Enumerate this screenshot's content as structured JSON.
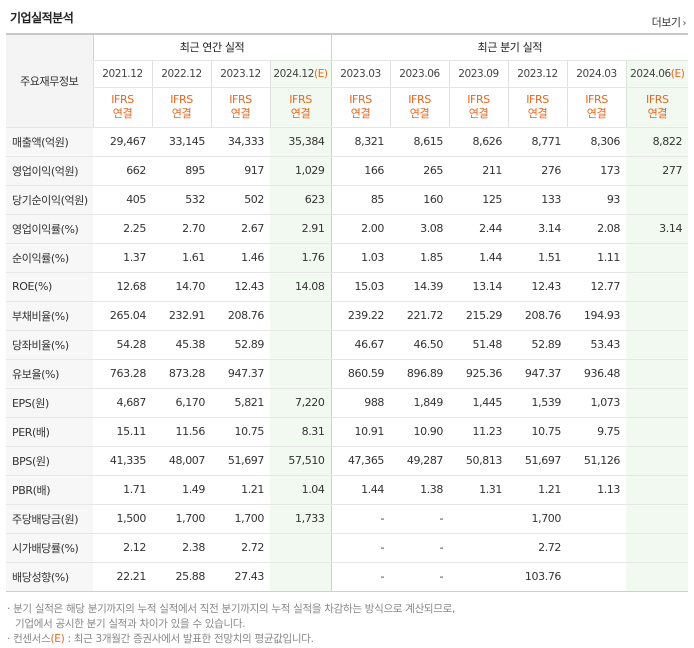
{
  "header": {
    "title": "기업실적분석",
    "more_label": "더보기"
  },
  "table": {
    "corner_label": "주요재무정보",
    "annual_group_label": "최근 연간 실적",
    "quarter_group_label": "최근 분기 실적",
    "annual_periods": [
      {
        "label": "2021.12",
        "std1": "IFRS",
        "std2": "연결"
      },
      {
        "label": "2022.12",
        "std1": "IFRS",
        "std2": "연결"
      },
      {
        "label": "2023.12",
        "std1": "IFRS",
        "std2": "연결"
      },
      {
        "label": "2024.12",
        "est": "(E)",
        "std1": "IFRS",
        "std2": "연결"
      }
    ],
    "quarter_periods": [
      {
        "label": "2023.03",
        "std1": "IFRS",
        "std2": "연결"
      },
      {
        "label": "2023.06",
        "std1": "IFRS",
        "std2": "연결"
      },
      {
        "label": "2023.09",
        "std1": "IFRS",
        "std2": "연결"
      },
      {
        "label": "2023.12",
        "std1": "IFRS",
        "std2": "연결"
      },
      {
        "label": "2024.03",
        "std1": "IFRS",
        "std2": "연결"
      },
      {
        "label": "2024.06",
        "est": "(E)",
        "std1": "IFRS",
        "std2": "연결"
      }
    ],
    "rows": [
      {
        "label": "매출액(억원)",
        "values": [
          "29,467",
          "33,145",
          "34,333",
          "35,384",
          "8,321",
          "8,615",
          "8,626",
          "8,771",
          "8,306",
          "8,822"
        ]
      },
      {
        "label": "영업이익(억원)",
        "values": [
          "662",
          "895",
          "917",
          "1,029",
          "166",
          "265",
          "211",
          "276",
          "173",
          "277"
        ]
      },
      {
        "label": "당기순이익(억원)",
        "values": [
          "405",
          "532",
          "502",
          "623",
          "85",
          "160",
          "125",
          "133",
          "93",
          ""
        ]
      },
      {
        "label": "영업이익률(%)",
        "sep": true,
        "values": [
          "2.25",
          "2.70",
          "2.67",
          "2.91",
          "2.00",
          "3.08",
          "2.44",
          "3.14",
          "2.08",
          "3.14"
        ]
      },
      {
        "label": "순이익률(%)",
        "values": [
          "1.37",
          "1.61",
          "1.46",
          "1.76",
          "1.03",
          "1.85",
          "1.44",
          "1.51",
          "1.11",
          ""
        ]
      },
      {
        "label": "ROE(%)",
        "values": [
          "12.68",
          "14.70",
          "12.43",
          "14.08",
          "15.03",
          "14.39",
          "13.14",
          "12.43",
          "12.77",
          ""
        ]
      },
      {
        "label": "부채비율(%)",
        "sep": true,
        "values": [
          "265.04",
          "232.91",
          "208.76",
          "",
          "239.22",
          "221.72",
          "215.29",
          "208.76",
          "194.93",
          ""
        ]
      },
      {
        "label": "당좌비율(%)",
        "values": [
          "54.28",
          "45.38",
          "52.89",
          "",
          "46.67",
          "46.50",
          "51.48",
          "52.89",
          "53.43",
          ""
        ]
      },
      {
        "label": "유보율(%)",
        "values": [
          "763.28",
          "873.28",
          "947.37",
          "",
          "860.59",
          "896.89",
          "925.36",
          "947.37",
          "936.48",
          ""
        ]
      },
      {
        "label": "EPS(원)",
        "sep": true,
        "values": [
          "4,687",
          "6,170",
          "5,821",
          "7,220",
          "988",
          "1,849",
          "1,445",
          "1,539",
          "1,073",
          ""
        ]
      },
      {
        "label": "PER(배)",
        "values": [
          "15.11",
          "11.56",
          "10.75",
          "8.31",
          "10.91",
          "10.90",
          "11.23",
          "10.75",
          "9.75",
          ""
        ]
      },
      {
        "label": "BPS(원)",
        "values": [
          "41,335",
          "48,007",
          "51,697",
          "57,510",
          "47,365",
          "49,287",
          "50,813",
          "51,697",
          "51,126",
          ""
        ]
      },
      {
        "label": "PBR(배)",
        "values": [
          "1.71",
          "1.49",
          "1.21",
          "1.04",
          "1.44",
          "1.38",
          "1.31",
          "1.21",
          "1.13",
          ""
        ]
      },
      {
        "label": "주당배당금(원)",
        "sep": true,
        "values": [
          "1,500",
          "1,700",
          "1,700",
          "1,733",
          "-",
          "-",
          "",
          "1,700",
          "",
          ""
        ]
      },
      {
        "label": "시가배당률(%)",
        "values": [
          "2.12",
          "2.38",
          "2.72",
          "",
          "-",
          "-",
          "",
          "2.72",
          "",
          ""
        ]
      },
      {
        "label": "배당성향(%)",
        "values": [
          "22.21",
          "25.88",
          "27.43",
          "",
          "-",
          "-",
          "",
          "103.76",
          "",
          ""
        ]
      }
    ]
  },
  "notes": {
    "line1": "· 분기 실적은 해당 분기까지의 누적 실적에서 직전 분기까지의 누적 실적을 차감하는 방식으로 계산되므로,",
    "line2": "  기업에서 공시한 분기 실적과 차이가 있을 수 있습니다.",
    "line3_pre": "· 컨센서스",
    "line3_e": "(E)",
    "line3_post": " : 최근 3개월간 증권사에서 발표한 전망치의 평균값입니다."
  },
  "colors": {
    "accent_orange": "#e8661c",
    "estimate_bg": "#f2f9f0",
    "label_bg": "#f7f7f7"
  }
}
